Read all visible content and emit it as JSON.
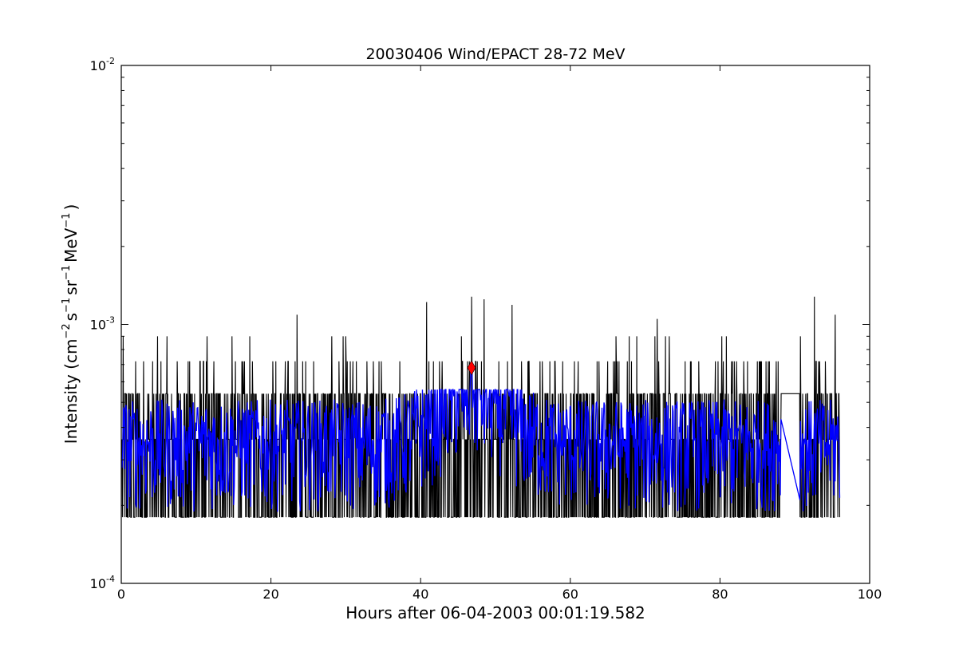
{
  "chart_data": {
    "type": "line",
    "title": "20030406 Wind/EPACT 28-72 MeV",
    "xlabel": "Hours after 06-04-2003 00:01:19.582",
    "ylabel": {
      "prefix": "Intensity (cm",
      "parts": [
        {
          "exp": "−2",
          "text": "s"
        },
        {
          "exp": "−1",
          "text": "sr"
        },
        {
          "exp": "−1",
          "text": "MeV"
        },
        {
          "exp": "−1",
          "text": ")"
        }
      ]
    },
    "x_axis": {
      "range": [
        0,
        100
      ],
      "ticks": [
        0,
        20,
        40,
        60,
        80,
        100
      ],
      "tick_labels": [
        "0",
        "20",
        "40",
        "60",
        "80",
        "100"
      ]
    },
    "y_axis": {
      "scale": "log",
      "range": [
        0.0001,
        0.01
      ],
      "major_ticks": [
        {
          "value": 0.0001,
          "base": "10",
          "exp": "-4"
        },
        {
          "value": 0.001,
          "base": "10",
          "exp": "-3"
        },
        {
          "value": 0.01,
          "base": "10",
          "exp": "-2"
        }
      ]
    },
    "grid": false,
    "series": [
      {
        "color": "#000000",
        "x_start": 0.1,
        "x_end": 96.0,
        "levels": [
          0.00018,
          0.00036,
          0.00054,
          0.00072,
          0.0009
        ],
        "spike_values": [
          0.00109,
          0.00122,
          0.00128,
          0.00125,
          0.00119,
          0.00105,
          0.00128,
          0.00109
        ],
        "spike_x": [
          23.5,
          40.8,
          46.8,
          48.5,
          52.2,
          71.6,
          92.6,
          95.4
        ],
        "gap": [
          88.2,
          90.6
        ]
      },
      {
        "color": "#0000ff",
        "x_start": 0.1,
        "x_end": 96.0,
        "baseline": 0.00027,
        "peak_x": 46.8,
        "peak_value": 0.00068,
        "gap": [
          88.2,
          90.6
        ]
      }
    ],
    "marker": {
      "x": 46.8,
      "y": 0.00068,
      "color": "#ff0000",
      "shape": "diamond"
    }
  }
}
